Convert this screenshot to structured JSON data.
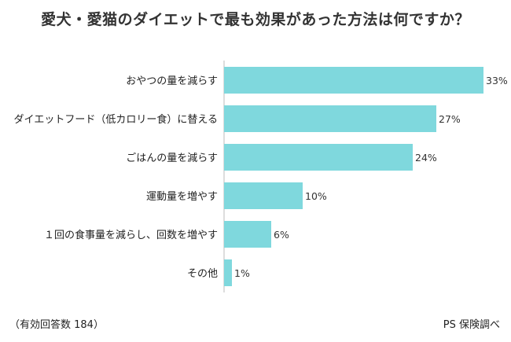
{
  "title": "愛犬・愛猫のダイエットで最も効果があった方法は何ですか？",
  "footer": {
    "note": "（有効回答数 184）",
    "source": "PS 保険調べ"
  },
  "colors": {
    "bar": "#7fd8dd",
    "axis": "#bbbbbb"
  },
  "chart_data": {
    "type": "bar",
    "orientation": "horizontal",
    "categories": [
      "おやつの量を減らす",
      "ダイエットフード（低カロリー食）に替える",
      "ごはんの量を減らす",
      "運動量を増やす",
      "１回の食事量を減らし、回数を増やす",
      "その他"
    ],
    "values": [
      33,
      27,
      24,
      10,
      6,
      1
    ],
    "value_labels": [
      "33%",
      "27%",
      "24%",
      "10%",
      "6%",
      "1%"
    ],
    "xlim": [
      0,
      33
    ],
    "grid": false,
    "legend": "none"
  }
}
